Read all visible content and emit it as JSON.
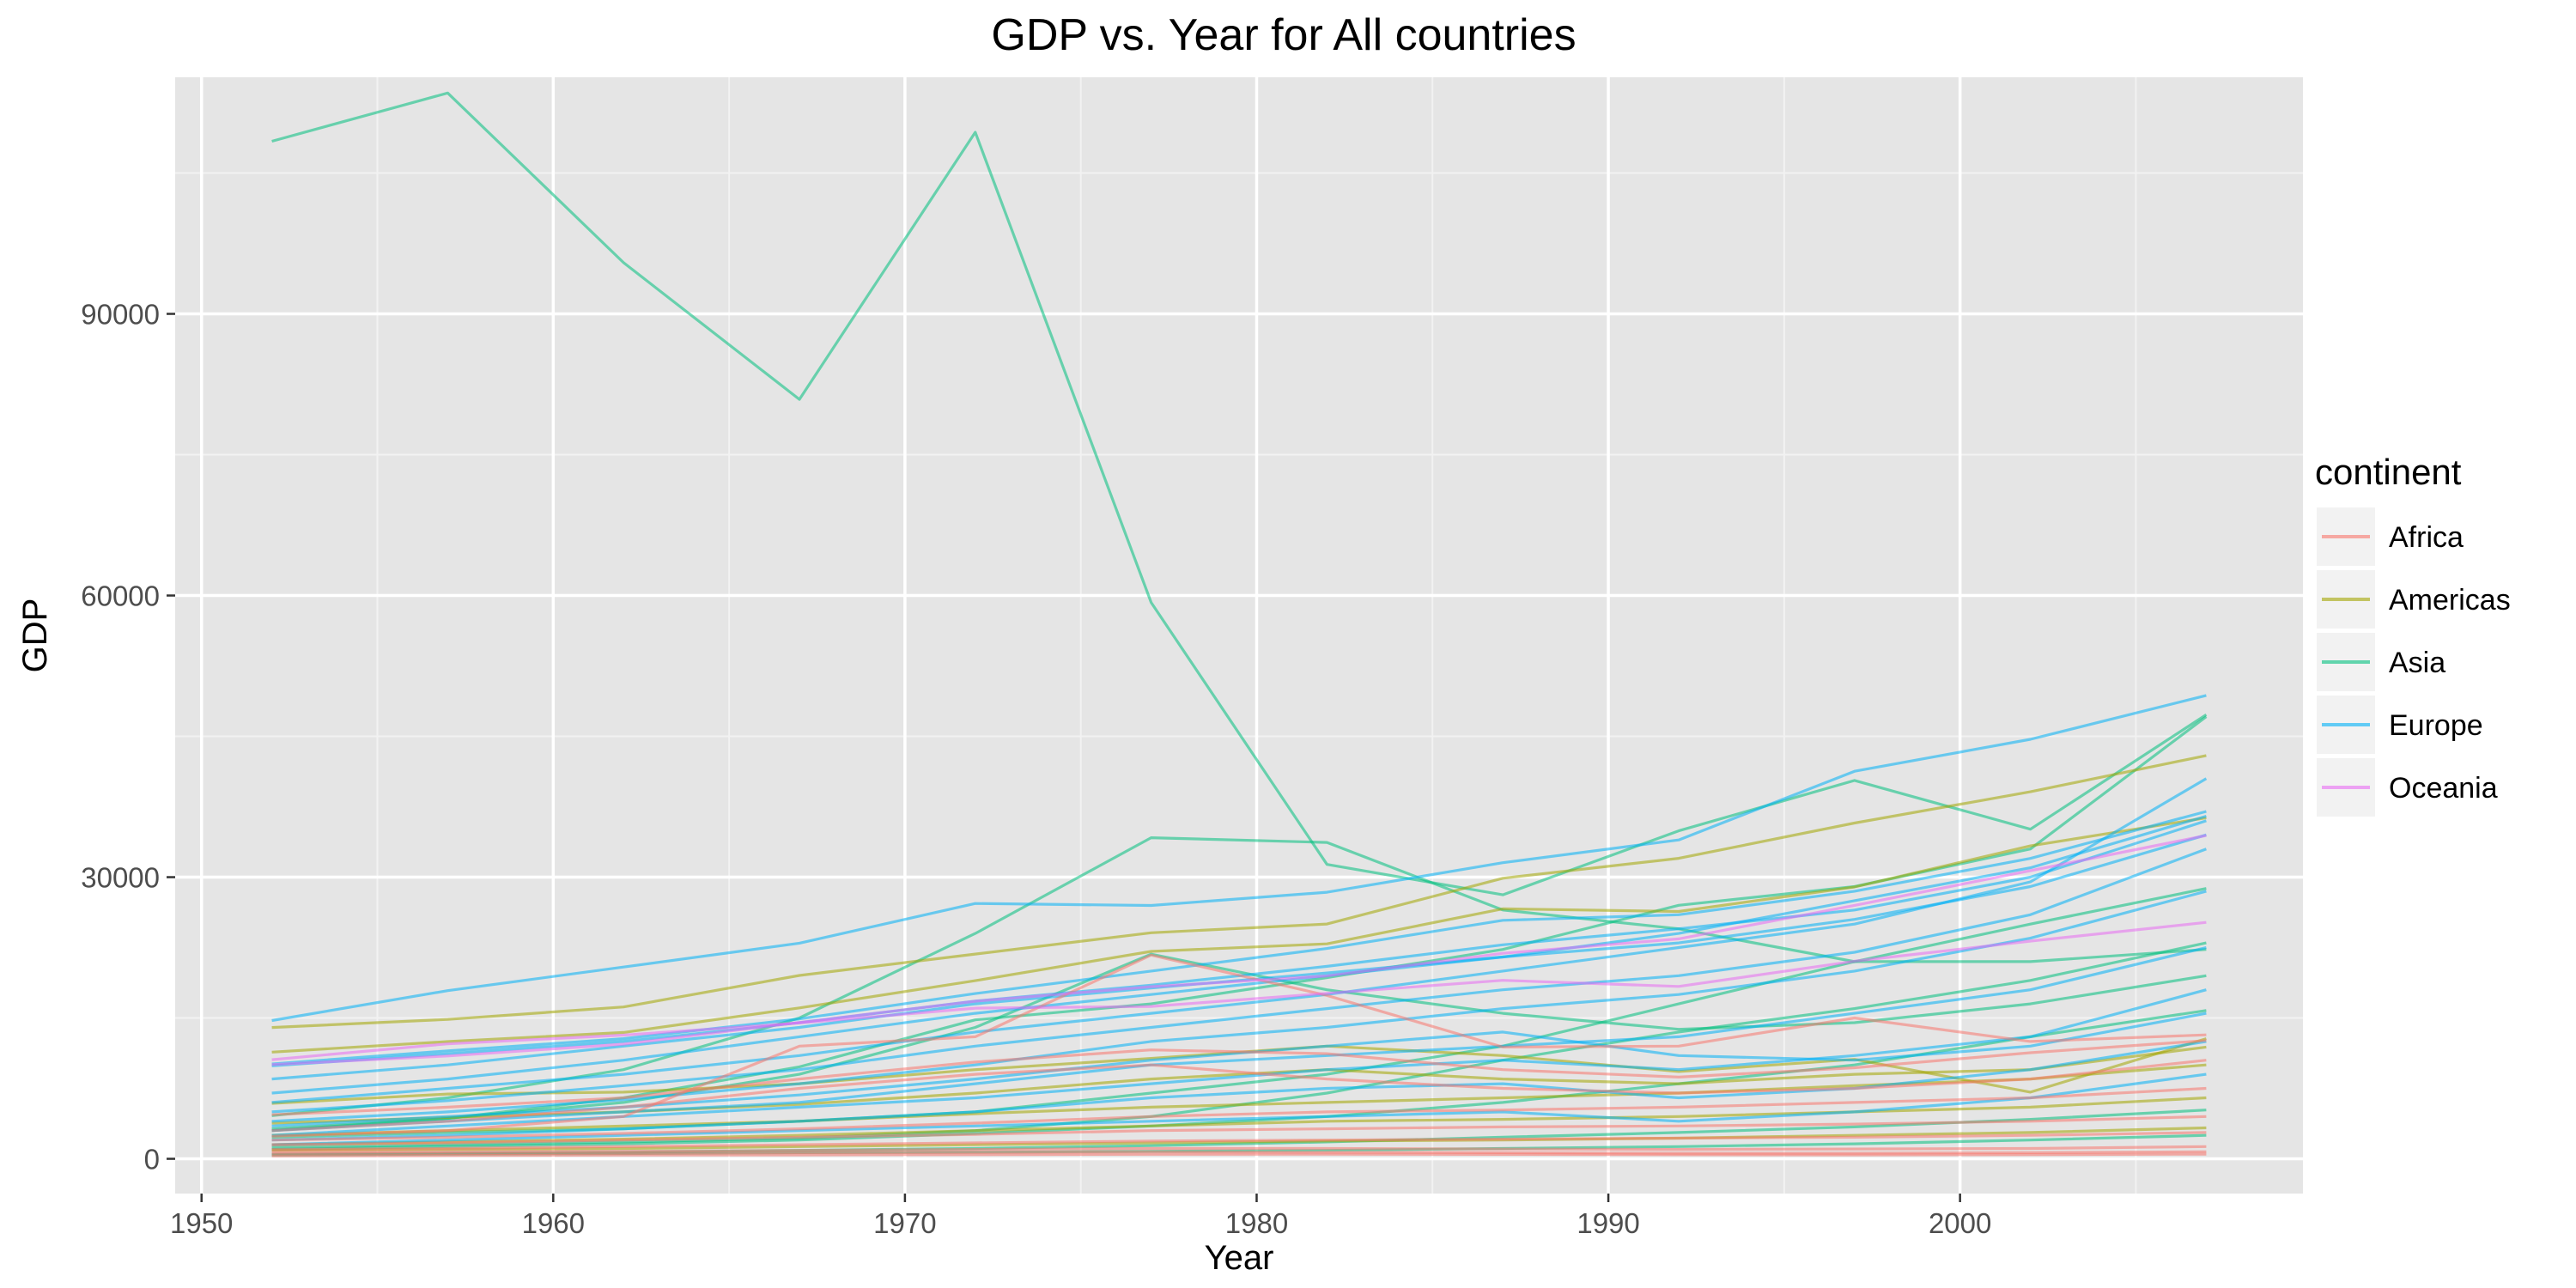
{
  "chart_data": {
    "type": "line",
    "title": "GDP vs. Year for All countries",
    "xlabel": "Year",
    "ylabel": "GDP",
    "xlim": [
      1949.25,
      2009.75
    ],
    "ylim": [
      -3700,
      115200
    ],
    "x_ticks": [
      1950,
      1960,
      1970,
      1980,
      1990,
      2000
    ],
    "y_ticks": [
      0,
      30000,
      60000,
      90000
    ],
    "grid": true,
    "legend": {
      "title": "continent",
      "placement": "right",
      "entries": [
        {
          "name": "Africa",
          "color": "#F8766D"
        },
        {
          "name": "Americas",
          "color": "#A3A500"
        },
        {
          "name": "Asia",
          "color": "#00BF7D"
        },
        {
          "name": "Europe",
          "color": "#00B0F6"
        },
        {
          "name": "Oceania",
          "color": "#E76BF3"
        }
      ]
    },
    "x": [
      1952,
      1957,
      1962,
      1967,
      1972,
      1977,
      1982,
      1987,
      1992,
      1997,
      2002,
      2007
    ],
    "series": [
      {
        "continent": "Asia",
        "values": [
          108382,
          113523,
          95458,
          80895,
          109348,
          59265,
          31354,
          28118,
          34932,
          40301,
          35110,
          47307
        ]
      },
      {
        "continent": "Asia",
        "values": [
          4600,
          6500,
          9500,
          15000,
          24000,
          34200,
          33700,
          26500,
          24500,
          21000,
          21000,
          22300
        ]
      },
      {
        "continent": "Asia",
        "values": [
          3200,
          4300,
          6000,
          9000,
          14000,
          21800,
          18000,
          15500,
          13800,
          14500,
          16500,
          19500
        ]
      },
      {
        "continent": "Asia",
        "values": [
          1200,
          1500,
          1800,
          2200,
          3000,
          4500,
          7000,
          10500,
          13500,
          16000,
          19000,
          23000
        ]
      },
      {
        "continent": "Asia",
        "values": [
          3000,
          4300,
          6500,
          9800,
          14800,
          16500,
          19300,
          22300,
          27000,
          29000,
          33000,
          47100
        ]
      },
      {
        "continent": "Asia",
        "values": [
          2300,
          2800,
          3200,
          4000,
          5000,
          7000,
          9000,
          12000,
          16500,
          21000,
          25000,
          28800
        ]
      },
      {
        "continent": "Asia",
        "values": [
          1000,
          1300,
          1600,
          2000,
          2700,
          3500,
          4500,
          6000,
          8000,
          10000,
          13000,
          15800
        ]
      },
      {
        "continent": "Asia",
        "values": [
          500,
          600,
          700,
          900,
          1100,
          1400,
          1800,
          2300,
          2800,
          3400,
          4200,
          5200
        ]
      },
      {
        "continent": "Asia",
        "values": [
          400,
          500,
          550,
          650,
          700,
          800,
          900,
          1100,
          1300,
          1600,
          2000,
          2500
        ]
      },
      {
        "continent": "Americas",
        "values": [
          13990,
          14847,
          16173,
          19530,
          21806,
          24073,
          25010,
          29884,
          32004,
          35767,
          39097,
          42952
        ]
      },
      {
        "continent": "Americas",
        "values": [
          11367,
          12490,
          13462,
          16077,
          18971,
          22091,
          22899,
          26627,
          26343,
          28955,
          33329,
          36319
        ]
      },
      {
        "continent": "Americas",
        "values": [
          5900,
          6900,
          7100,
          8000,
          9500,
          10700,
          12000,
          11000,
          9300,
          10600,
          7100,
          12800
        ]
      },
      {
        "continent": "Americas",
        "values": [
          3800,
          4400,
          5000,
          5800,
          7000,
          8500,
          9500,
          8500,
          8000,
          9000,
          9500,
          11900
        ]
      },
      {
        "continent": "Americas",
        "values": [
          2500,
          3000,
          3500,
          4000,
          4800,
          5500,
          6000,
          6500,
          7000,
          7800,
          8500,
          10000
        ]
      },
      {
        "continent": "Americas",
        "values": [
          1500,
          1800,
          2100,
          2500,
          3000,
          3500,
          4000,
          4200,
          4500,
          5000,
          5500,
          6500
        ]
      },
      {
        "continent": "Americas",
        "values": [
          900,
          1000,
          1100,
          1300,
          1500,
          1700,
          1900,
          2000,
          2200,
          2500,
          2800,
          3300
        ]
      },
      {
        "continent": "Europe",
        "values": [
          14734,
          17909,
          20431,
          22966,
          27195,
          26982,
          28397,
          31541,
          33965,
          41283,
          44684,
          49357
        ]
      },
      {
        "continent": "Europe",
        "values": [
          10100,
          11500,
          12800,
          14900,
          17600,
          20000,
          22400,
          25400,
          26000,
          28500,
          32000,
          37000
        ]
      },
      {
        "continent": "Europe",
        "values": [
          9900,
          11200,
          12500,
          14500,
          16800,
          18500,
          20500,
          22800,
          24500,
          26500,
          30000,
          36000
        ]
      },
      {
        "continent": "Europe",
        "values": [
          8500,
          10000,
          12000,
          14000,
          16500,
          18200,
          19800,
          21500,
          23000,
          25500,
          29000,
          34500
        ]
      },
      {
        "continent": "Europe",
        "values": [
          7000,
          8500,
          10500,
          13000,
          15500,
          17500,
          19500,
          21500,
          24000,
          27500,
          31000,
          36500
        ]
      },
      {
        "continent": "Europe",
        "values": [
          6000,
          7500,
          9000,
          11000,
          13500,
          15500,
          17500,
          20000,
          22500,
          25000,
          29500,
          40500
        ]
      },
      {
        "continent": "Europe",
        "values": [
          5000,
          6200,
          7800,
          9500,
          12000,
          14000,
          16000,
          18000,
          19500,
          22000,
          26000,
          33000
        ]
      },
      {
        "continent": "Europe",
        "values": [
          4000,
          5000,
          6300,
          8000,
          10000,
          12500,
          14000,
          16000,
          17500,
          20000,
          23500,
          28500
        ]
      },
      {
        "continent": "Europe",
        "values": [
          3000,
          4000,
          5000,
          6000,
          8000,
          10000,
          11000,
          12000,
          13000,
          15500,
          18000,
          22500
        ]
      },
      {
        "continent": "Europe",
        "values": [
          2500,
          3500,
          4500,
          5500,
          6500,
          8000,
          9500,
          10500,
          9500,
          11000,
          13000,
          18000
        ]
      },
      {
        "continent": "Europe",
        "values": [
          2000,
          2500,
          3200,
          4000,
          5000,
          6500,
          7500,
          8000,
          6500,
          7500,
          9500,
          12500
        ]
      },
      {
        "continent": "Europe",
        "values": [
          3500,
          4500,
          5500,
          6800,
          8500,
          10500,
          12000,
          13500,
          11000,
          10500,
          12000,
          15500
        ]
      },
      {
        "continent": "Europe",
        "values": [
          1500,
          2000,
          2500,
          3000,
          3500,
          4000,
          4500,
          5000,
          4000,
          5000,
          6500,
          9000
        ]
      },
      {
        "continent": "Africa",
        "values": [
          2400,
          3000,
          4500,
          12000,
          13000,
          21700,
          17400,
          11900,
          12000,
          15000,
          12500,
          13200
        ]
      },
      {
        "continent": "Africa",
        "values": [
          4700,
          5500,
          6500,
          8500,
          10300,
          11600,
          11200,
          9500,
          8700,
          9700,
          11300,
          12600
        ]
      },
      {
        "continent": "Africa",
        "values": [
          3000,
          4000,
          5500,
          7500,
          9000,
          10000,
          8500,
          7500,
          7000,
          7500,
          8500,
          10500
        ]
      },
      {
        "continent": "Africa",
        "values": [
          2000,
          2300,
          2700,
          3200,
          3800,
          4500,
          5000,
          5200,
          5500,
          6000,
          6500,
          7500
        ]
      },
      {
        "continent": "Africa",
        "values": [
          1500,
          1700,
          2000,
          2300,
          2600,
          3000,
          3200,
          3400,
          3500,
          3700,
          4000,
          4500
        ]
      },
      {
        "continent": "Africa",
        "values": [
          1000,
          1100,
          1300,
          1500,
          1700,
          1900,
          2000,
          2100,
          2200,
          2300,
          2500,
          2800
        ]
      },
      {
        "continent": "Africa",
        "values": [
          700,
          750,
          800,
          900,
          1000,
          1100,
          1100,
          1050,
          1000,
          1050,
          1100,
          1300
        ]
      },
      {
        "continent": "Africa",
        "values": [
          500,
          550,
          600,
          650,
          700,
          750,
          700,
          650,
          600,
          600,
          650,
          750
        ]
      },
      {
        "continent": "Africa",
        "values": [
          300,
          350,
          400,
          420,
          450,
          480,
          500,
          470,
          430,
          420,
          450,
          500
        ]
      },
      {
        "continent": "Oceania",
        "values": [
          10040,
          10950,
          12218,
          14526,
          16789,
          18334,
          19477,
          21889,
          23425,
          26998,
          30688,
          34435
        ]
      },
      {
        "continent": "Oceania",
        "values": [
          10557,
          12247,
          13176,
          14464,
          16046,
          16233,
          17632,
          19007,
          18363,
          21050,
          23190,
          25185
        ]
      }
    ]
  }
}
